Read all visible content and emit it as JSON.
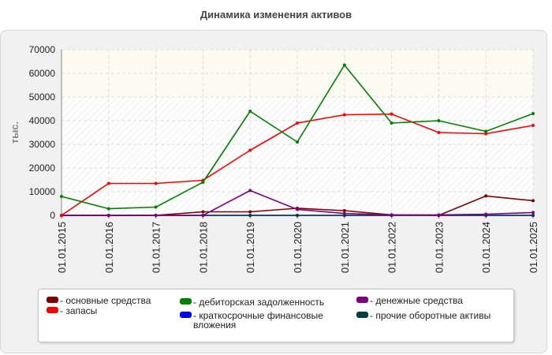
{
  "chart_data": {
    "type": "line",
    "title": "Динамика изменения активов",
    "xlabel": "",
    "ylabel": "тыс.",
    "ylim": [
      0,
      70000
    ],
    "yticks": [
      "0",
      "10000",
      "20000",
      "30000",
      "40000",
      "50000",
      "60000",
      "70000"
    ],
    "categories": [
      "01.01.2015",
      "01.01.2016",
      "01.01.2017",
      "01.01.2018",
      "01.01.2019",
      "01.01.2020",
      "01.01.2021",
      "01.01.2022",
      "01.01.2023",
      "01.01.2024",
      "01.01.2025"
    ],
    "grid": true,
    "legend_position": "bottom",
    "series": [
      {
        "name": "- основные средства",
        "color": "#800000",
        "values": [
          0,
          0,
          0,
          1500,
          1500,
          3000,
          2000,
          200,
          0,
          8200,
          6200
        ]
      },
      {
        "name": "- запасы",
        "color": "#ff0000",
        "values": [
          0,
          13500,
          13500,
          14800,
          27500,
          39000,
          42500,
          42800,
          35000,
          34500,
          38000
        ]
      },
      {
        "name": "- дебиторская задолженность",
        "color": "#008000",
        "values": [
          8000,
          2800,
          3500,
          14000,
          44000,
          31000,
          63500,
          39000,
          40000,
          35500,
          43000
        ]
      },
      {
        "name": "- краткосрочные финансовые вложения",
        "color": "#0000ff",
        "values": [
          0,
          0,
          0,
          0,
          0,
          0,
          0,
          0,
          0,
          0,
          0
        ]
      },
      {
        "name": "- денежные средства",
        "color": "#800080",
        "values": [
          0,
          0,
          0,
          0,
          10500,
          2500,
          800,
          200,
          200,
          500,
          1200
        ]
      },
      {
        "name": "- прочие оборотные активы",
        "color": "#004040",
        "values": [
          0,
          0,
          0,
          0,
          0,
          0,
          0,
          0,
          0,
          0,
          0
        ]
      }
    ]
  }
}
